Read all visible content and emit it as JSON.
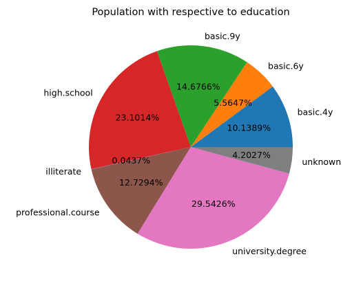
{
  "chart_data": {
    "type": "pie",
    "title": "Population with respective to education",
    "categories": [
      "basic.4y",
      "basic.6y",
      "basic.9y",
      "high.school",
      "illiterate",
      "professional.course",
      "university.degree",
      "unknown"
    ],
    "values": [
      10.1389,
      5.5647,
      14.6766,
      23.1014,
      0.0437,
      12.7294,
      29.5426,
      4.2027
    ],
    "value_labels": [
      "10.1389%",
      "5.5647%",
      "14.6766%",
      "23.1014%",
      "0.0437%",
      "12.7294%",
      "29.5426%",
      "4.2027%"
    ],
    "colors": [
      "#1f77b4",
      "#ff7f0e",
      "#2ca02c",
      "#d62728",
      "#9467bd",
      "#8c564b",
      "#e377c2",
      "#7f7f7f"
    ],
    "start_angle_deg": 0,
    "direction": "counterclockwise"
  }
}
